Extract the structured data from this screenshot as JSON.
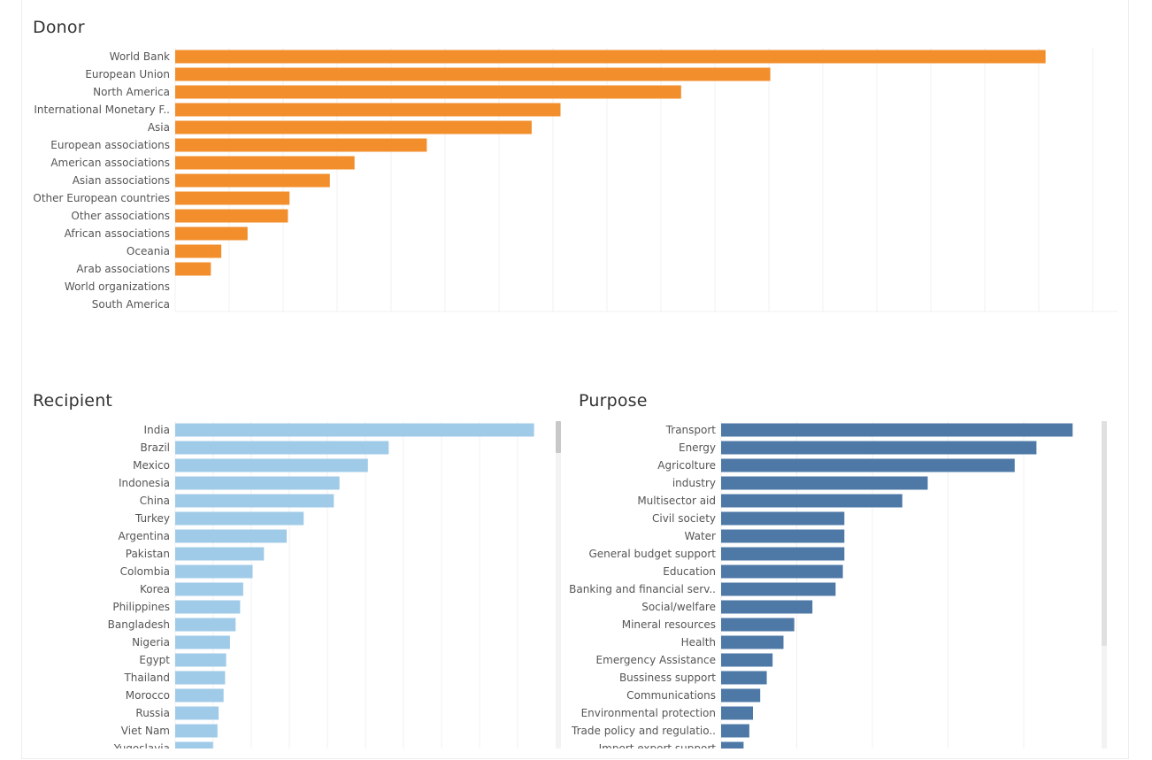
{
  "panels": {
    "donor": {
      "title": "Donor"
    },
    "recipient": {
      "title": "Recipient"
    },
    "purpose": {
      "title": "Purpose"
    }
  },
  "chart_data": [
    {
      "type": "bar",
      "orientation": "horizontal",
      "title": "Donor",
      "color": "#f28e2b",
      "xlim": [
        0,
        17.5
      ],
      "grid": true,
      "categories": [
        "World Bank",
        "European Union",
        "North America",
        "International Monetary F..",
        "Asia",
        "European associations",
        "American associations",
        "Asian associations",
        "Other European countries",
        "Other associations",
        "African associations",
        "Oceania",
        "Arab associations",
        "World organizations",
        "South America"
      ],
      "values": [
        16.6,
        11.35,
        9.65,
        7.35,
        6.8,
        4.8,
        3.42,
        2.95,
        2.18,
        2.15,
        1.38,
        0.88,
        0.68,
        0,
        0
      ]
    },
    {
      "type": "bar",
      "orientation": "horizontal",
      "title": "Recipient",
      "color": "#a0cbe8",
      "xlim": [
        0,
        10
      ],
      "grid": true,
      "categories": [
        "India",
        "Brazil",
        "Mexico",
        "Indonesia",
        "China",
        "Turkey",
        "Argentina",
        "Pakistan",
        "Colombia",
        "Korea",
        "Philippines",
        "Bangladesh",
        "Nigeria",
        "Egypt",
        "Thailand",
        "Morocco",
        "Russia",
        "Viet Nam",
        "Yugoslavia"
      ],
      "values": [
        9.5,
        5.65,
        5.1,
        4.35,
        4.2,
        3.4,
        2.95,
        2.35,
        2.05,
        1.8,
        1.72,
        1.6,
        1.45,
        1.35,
        1.32,
        1.28,
        1.15,
        1.12,
        1.0
      ]
    },
    {
      "type": "bar",
      "orientation": "horizontal",
      "title": "Purpose",
      "color": "#4e79a7",
      "xlim": [
        0,
        5.2
      ],
      "grid": true,
      "categories": [
        "Transport",
        "Energy",
        "Agricolture",
        "industry",
        "Multisector aid",
        "Civil society",
        "Water",
        "General budget support",
        "Education",
        "Banking and financial serv..",
        "Social/welfare",
        "Mineral resources",
        "Health",
        "Emergency Assistance",
        "Bussiness support",
        "Communications",
        "Environmental protection",
        "Trade policy and regulatio..",
        "Import export support"
      ],
      "values": [
        4.85,
        4.35,
        4.05,
        2.85,
        2.5,
        1.7,
        1.7,
        1.7,
        1.68,
        1.58,
        1.26,
        1.01,
        0.86,
        0.71,
        0.63,
        0.54,
        0.44,
        0.39,
        0.31
      ]
    }
  ]
}
